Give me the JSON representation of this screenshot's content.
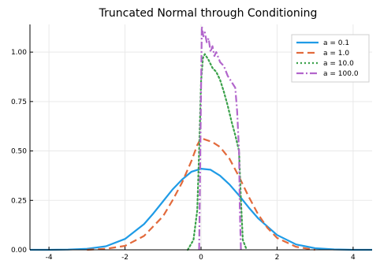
{
  "chart_data": {
    "type": "line",
    "title": "Truncated Normal through Conditioning",
    "xlabel": "",
    "ylabel": "",
    "xlim": [
      -4.5,
      4.5
    ],
    "ylim": [
      0,
      1.14
    ],
    "grid": true,
    "legend_position": "top-right",
    "xticks": [
      -4,
      -2,
      0,
      2,
      4
    ],
    "xtick_labels": [
      "-4",
      "-2",
      "0",
      "2",
      "4"
    ],
    "yticks": [
      0,
      0.25,
      0.5,
      0.75,
      1.0
    ],
    "ytick_labels": [
      "0.00",
      "0.25",
      "0.50",
      "0.75",
      "1.00"
    ],
    "series": [
      {
        "name": "a = 0.1",
        "color": "#1f9be6",
        "style": "solid",
        "x": [
          -4.5,
          -4.0,
          -3.5,
          -3.0,
          -2.5,
          -2.0,
          -1.5,
          -1.25,
          -1.0,
          -0.75,
          -0.5,
          -0.25,
          0.0,
          0.25,
          0.5,
          0.75,
          1.0,
          1.25,
          1.5,
          2.0,
          2.5,
          3.0,
          3.5,
          4.0,
          4.5
        ],
        "y": [
          0.0,
          0.0,
          0.001,
          0.005,
          0.018,
          0.055,
          0.13,
          0.185,
          0.245,
          0.305,
          0.355,
          0.395,
          0.41,
          0.405,
          0.375,
          0.33,
          0.275,
          0.215,
          0.16,
          0.075,
          0.027,
          0.008,
          0.002,
          0.0,
          0.0
        ]
      },
      {
        "name": "a = 1.0",
        "color": "#e26a3c",
        "style": "dashed",
        "x": [
          -3.0,
          -2.5,
          -2.0,
          -1.5,
          -1.0,
          -0.75,
          -0.5,
          -0.25,
          -0.1,
          0.0,
          0.15,
          0.3,
          0.5,
          0.75,
          1.0,
          1.25,
          1.5,
          1.75,
          2.0,
          2.5,
          3.0
        ],
        "y": [
          0.0,
          0.005,
          0.02,
          0.07,
          0.17,
          0.25,
          0.34,
          0.45,
          0.53,
          0.565,
          0.555,
          0.545,
          0.52,
          0.46,
          0.37,
          0.27,
          0.18,
          0.11,
          0.06,
          0.015,
          0.0
        ]
      },
      {
        "name": "a = 10.0",
        "color": "#3aa14a",
        "style": "dotted",
        "x": [
          -0.35,
          -0.2,
          -0.1,
          -0.05,
          0.0,
          0.05,
          0.1,
          0.2,
          0.3,
          0.4,
          0.5,
          0.6,
          0.7,
          0.8,
          0.9,
          1.0,
          1.05,
          1.1,
          1.2
        ],
        "y": [
          0.0,
          0.05,
          0.2,
          0.5,
          0.85,
          0.97,
          0.99,
          0.96,
          0.92,
          0.9,
          0.86,
          0.8,
          0.73,
          0.65,
          0.58,
          0.5,
          0.25,
          0.05,
          0.0
        ]
      },
      {
        "name": "a = 100.0",
        "color": "#b266cc",
        "style": "dashdot",
        "x": [
          -0.05,
          0.0,
          0.02,
          0.06,
          0.1,
          0.15,
          0.2,
          0.25,
          0.3,
          0.35,
          0.4,
          0.5,
          0.6,
          0.7,
          0.8,
          0.9,
          0.95,
          1.0,
          1.02,
          1.05
        ],
        "y": [
          0.0,
          0.8,
          1.13,
          1.08,
          1.1,
          1.05,
          1.07,
          1.0,
          1.03,
          0.98,
          1.0,
          0.95,
          0.93,
          0.88,
          0.85,
          0.82,
          0.7,
          0.5,
          0.2,
          0.0
        ]
      }
    ]
  }
}
